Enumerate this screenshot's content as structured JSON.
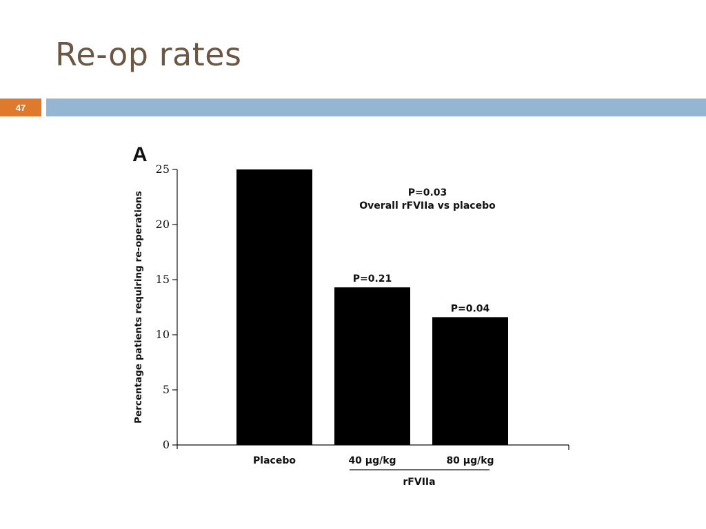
{
  "slide": {
    "title": "Re-op rates",
    "page_number": "47",
    "colors": {
      "title": "#6b5744",
      "badge": "#df7a2c",
      "bar": "#95b6d3"
    }
  },
  "chart_data": {
    "type": "bar",
    "panel_label": "A",
    "ylabel": "Percentage patients requiring re-operations",
    "xlabel": "",
    "categories": [
      "Placebo",
      "40 µg/kg",
      "80 µg/kg"
    ],
    "values": [
      25,
      14.3,
      11.6
    ],
    "ylim": [
      0,
      25
    ],
    "yticks": [
      0,
      5,
      10,
      15,
      20,
      25
    ],
    "bar_color": "#000000",
    "group_label": "rFVIIa",
    "bar_annotations": [
      "",
      "P=0.21",
      "P=0.04"
    ],
    "overall_annotation": [
      "P=0.03",
      "Overall rFVIIa vs placebo"
    ]
  }
}
